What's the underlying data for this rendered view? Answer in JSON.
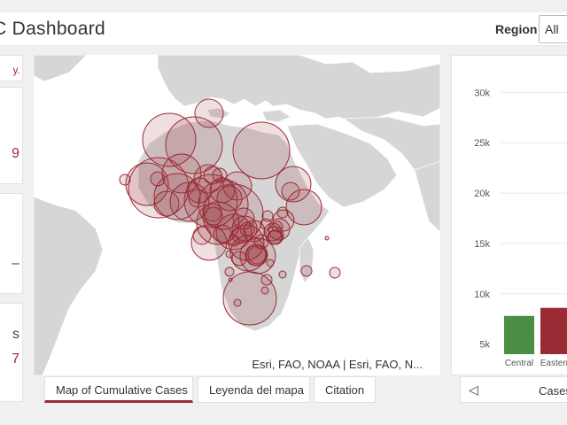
{
  "header": {
    "title": "C Dashboard",
    "region_label": "Region",
    "region_value": "All"
  },
  "left_panel": {
    "note": "y.",
    "card_glyphs": [
      "9",
      "–",
      "s",
      "7"
    ]
  },
  "map": {
    "attribution": "Esri, FAO, NOAA | Esri, FAO, N...",
    "colors": {
      "ocean": "#ffffff",
      "land": "#d6d6d6",
      "bubble_fill": "rgba(154,43,53,0.15)",
      "bubble_stroke": "#9a2b35"
    }
  },
  "map_tabs": [
    "Map of Cumulative Cases",
    "Leyenda del mapa",
    "Citation"
  ],
  "chart_data": {
    "type": "bar",
    "categories": [
      "Central",
      "Eastern"
    ],
    "values": [
      7800,
      8600
    ],
    "colors": [
      "#4a8f45",
      "#9a2b35"
    ],
    "y_ticks": [
      "30k",
      "25k",
      "20k",
      "15k",
      "10k",
      "5k"
    ],
    "ylim": [
      4000,
      31000
    ]
  },
  "chart_tabs": {
    "prev_icon": "chevron-left-icon",
    "label": "Cases"
  }
}
